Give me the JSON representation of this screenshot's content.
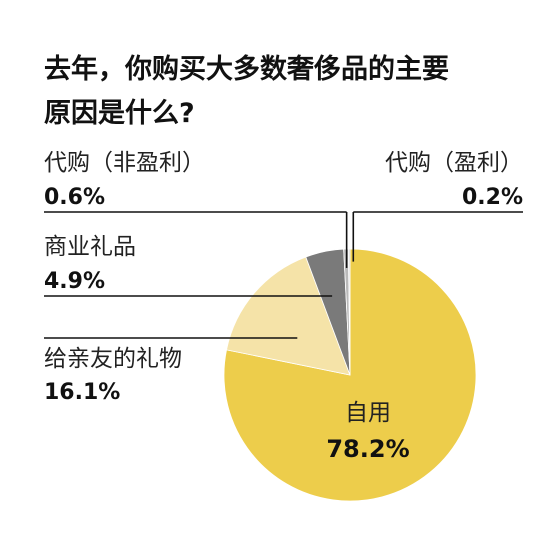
{
  "title_line1": "去年，你购买大多数奢侈品的主要",
  "title_line2": "原因是什么?",
  "chart_data": {
    "type": "pie",
    "title": "去年，你购买大多数奢侈品的主要原因是什么?",
    "slices": [
      {
        "label": "自用",
        "value_text": "78.2%",
        "value": 78.2,
        "color": "#edcd4b"
      },
      {
        "label": "给亲友的礼物",
        "value_text": "16.1%",
        "value": 16.1,
        "color": "#f5e3a8"
      },
      {
        "label": "商业礼品",
        "value_text": "4.9%",
        "value": 4.9,
        "color": "#7a7a7a"
      },
      {
        "label": "代购（非盈利）",
        "value_text": "0.6%",
        "value": 0.6,
        "color": "#b9b9b9"
      },
      {
        "label": "代购（盈利）",
        "value_text": "0.2%",
        "value": 0.2,
        "color": "#d8d8d8"
      }
    ]
  }
}
